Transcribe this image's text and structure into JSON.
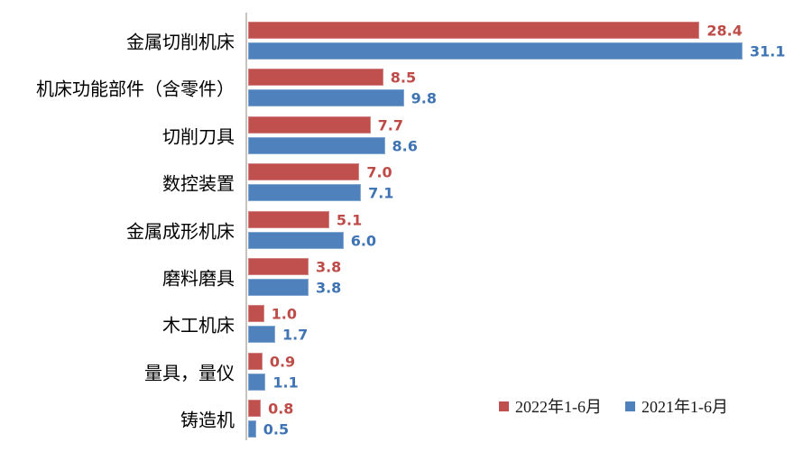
{
  "chart_data": {
    "type": "bar",
    "orientation": "horizontal",
    "categories": [
      "金属切削机床",
      "机床功能部件（含零件）",
      "切削刀具",
      "数控装置",
      "金属成形机床",
      "磨料磨具",
      "木工机床",
      "量具，量仪",
      "铸造机"
    ],
    "series": [
      {
        "name": "2022年1-6月",
        "color": "#c0504d",
        "label_color": "#be4b47",
        "values": [
          28.4,
          8.5,
          7.7,
          7.0,
          5.1,
          3.8,
          1.0,
          0.9,
          0.8
        ]
      },
      {
        "name": "2021年1-6月",
        "color": "#4f81bd",
        "label_color": "#3e73b4",
        "values": [
          31.1,
          9.8,
          8.6,
          7.1,
          6.0,
          3.8,
          1.7,
          1.1,
          0.5
        ]
      }
    ],
    "title": "",
    "xlabel": "",
    "ylabel": "",
    "xlim": [
      0,
      35
    ],
    "grid": false,
    "legend_position": "bottom-right",
    "value_labels_shown": true
  },
  "legend": {
    "items": [
      {
        "label": "2022年1-6月",
        "color": "#c0504d"
      },
      {
        "label": "2021年1-6月",
        "color": "#4f81bd"
      }
    ]
  },
  "colors": {
    "background": "#ffffff",
    "axis_line": "#c7c3bf",
    "category_text": "#000000"
  }
}
